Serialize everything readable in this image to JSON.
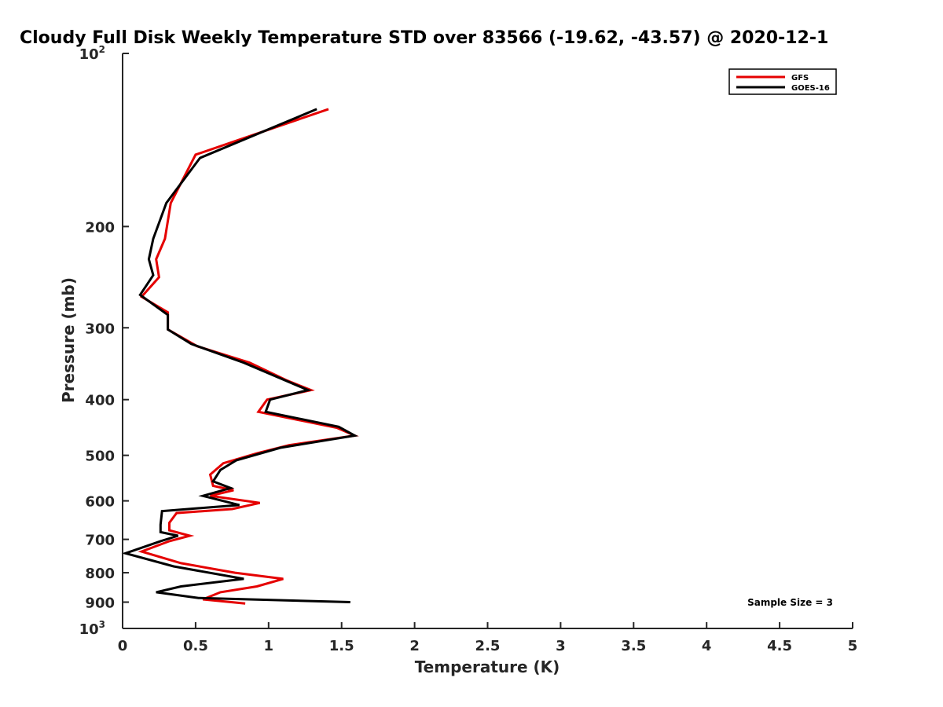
{
  "chart_data": {
    "type": "line",
    "title": "Cloudy Full Disk Weekly Temperature STD over 83566 (-19.62, -43.57) @ 2020-12-1",
    "xlabel": "Temperature (K)",
    "ylabel": "Pressure (mb)",
    "xlim": [
      0,
      5
    ],
    "ylim": [
      100,
      1000
    ],
    "y_scale": "log",
    "y_reversed": true,
    "x_ticks": [
      "0",
      "0.5",
      "1",
      "1.5",
      "2",
      "2.5",
      "3",
      "3.5",
      "4",
      "4.5",
      "5"
    ],
    "y_ticks": [
      {
        "value": 100,
        "base": "10",
        "exp": "2"
      },
      {
        "value": 200,
        "label": "200"
      },
      {
        "value": 300,
        "label": "300"
      },
      {
        "value": 400,
        "label": "400"
      },
      {
        "value": 500,
        "label": "500"
      },
      {
        "value": 600,
        "label": "600"
      },
      {
        "value": 700,
        "label": "700"
      },
      {
        "value": 800,
        "label": "800"
      },
      {
        "value": 900,
        "label": "900"
      },
      {
        "value": 1000,
        "base": "10",
        "exp": "3"
      }
    ],
    "legend_position": "top-right",
    "series": [
      {
        "name": "GFS",
        "color": "#e50000",
        "points": [
          [
            1.41,
            125
          ],
          [
            0.5,
            150
          ],
          [
            0.33,
            182
          ],
          [
            0.29,
            210
          ],
          [
            0.23,
            228
          ],
          [
            0.25,
            245
          ],
          [
            0.13,
            265
          ],
          [
            0.31,
            282
          ],
          [
            0.31,
            302
          ],
          [
            0.51,
            323
          ],
          [
            0.87,
            345
          ],
          [
            1.12,
            370
          ],
          [
            1.29,
            385
          ],
          [
            0.99,
            400
          ],
          [
            0.93,
            420
          ],
          [
            1.47,
            448
          ],
          [
            1.59,
            462
          ],
          [
            1.14,
            480
          ],
          [
            0.92,
            496
          ],
          [
            0.69,
            516
          ],
          [
            0.6,
            540
          ],
          [
            0.62,
            565
          ],
          [
            0.76,
            575
          ],
          [
            0.6,
            588
          ],
          [
            0.94,
            605
          ],
          [
            0.75,
            620
          ],
          [
            0.37,
            630
          ],
          [
            0.32,
            655
          ],
          [
            0.32,
            675
          ],
          [
            0.46,
            690
          ],
          [
            0.32,
            705
          ],
          [
            0.13,
            735
          ],
          [
            0.4,
            770
          ],
          [
            0.77,
            800
          ],
          [
            1.1,
            820
          ],
          [
            0.92,
            845
          ],
          [
            0.67,
            865
          ],
          [
            0.55,
            890
          ],
          [
            0.84,
            905
          ]
        ]
      },
      {
        "name": "GOES-16",
        "color": "#000000",
        "points": [
          [
            1.33,
            125
          ],
          [
            0.53,
            152
          ],
          [
            0.3,
            182
          ],
          [
            0.21,
            210
          ],
          [
            0.18,
            228
          ],
          [
            0.21,
            243
          ],
          [
            0.12,
            263
          ],
          [
            0.31,
            285
          ],
          [
            0.31,
            302
          ],
          [
            0.47,
            320
          ],
          [
            0.83,
            345
          ],
          [
            1.27,
            385
          ],
          [
            1.01,
            400
          ],
          [
            0.98,
            420
          ],
          [
            1.48,
            446
          ],
          [
            1.59,
            462
          ],
          [
            1.08,
            485
          ],
          [
            0.78,
            510
          ],
          [
            0.67,
            530
          ],
          [
            0.62,
            555
          ],
          [
            0.74,
            570
          ],
          [
            0.55,
            588
          ],
          [
            0.8,
            610
          ],
          [
            0.27,
            625
          ],
          [
            0.26,
            660
          ],
          [
            0.26,
            680
          ],
          [
            0.38,
            690
          ],
          [
            0.26,
            705
          ],
          [
            0.02,
            740
          ],
          [
            0.35,
            780
          ],
          [
            0.83,
            820
          ],
          [
            0.4,
            845
          ],
          [
            0.23,
            865
          ],
          [
            0.52,
            885
          ],
          [
            1.56,
            900
          ]
        ]
      }
    ],
    "annotation": "Sample Size = 3"
  }
}
